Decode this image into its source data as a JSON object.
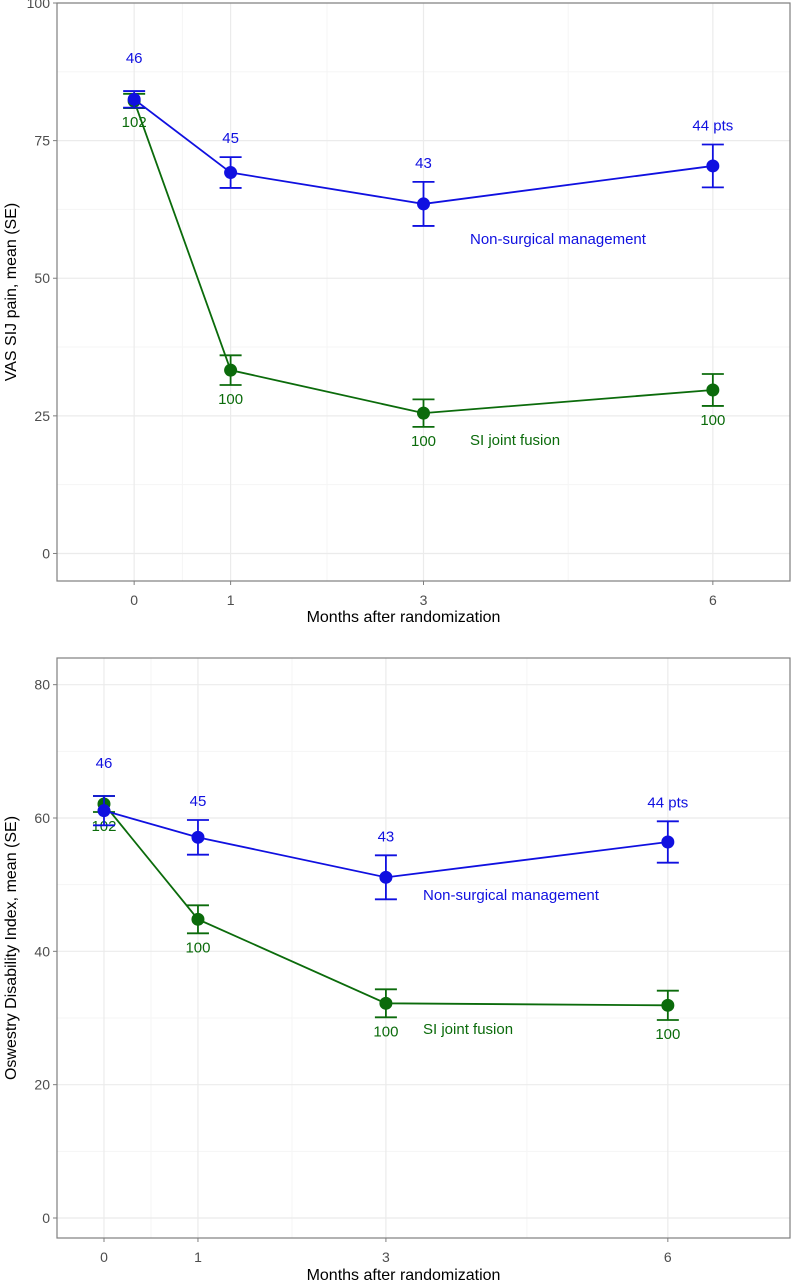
{
  "colors": {
    "nonsurgical": "#1010e0",
    "fusion": "#0b6b0b",
    "grid": "#ebebeb",
    "panel_border": "#7f7f7f"
  },
  "chart_data": [
    {
      "type": "line",
      "ylabel": "VAS SIJ pain, mean (SE)",
      "xlabel": "Months after randomization",
      "x": [
        0,
        1,
        3,
        6
      ],
      "xlim": [
        -0.8,
        6.8
      ],
      "ylim": [
        -5,
        100
      ],
      "yticks": [
        0,
        25,
        50,
        75,
        100
      ],
      "xticks": [
        0,
        1,
        3,
        6
      ],
      "grid": true,
      "series": [
        {
          "name": "Non-surgical management",
          "key": "nonsurgical",
          "values": [
            82.5,
            69.2,
            63.5,
            70.4
          ],
          "se": [
            1.5,
            2.8,
            4.0,
            3.9
          ],
          "n_labels": [
            "46",
            "45",
            "43",
            "44 pts"
          ],
          "n_position": "above"
        },
        {
          "name": "SI joint fusion",
          "key": "fusion",
          "values": [
            82.2,
            33.3,
            25.5,
            29.7
          ],
          "se": [
            1.3,
            2.7,
            2.5,
            2.9
          ],
          "n_labels": [
            "102",
            "100",
            "100",
            "100"
          ],
          "n_position": "below"
        }
      ]
    },
    {
      "type": "line",
      "ylabel": "Oswestry Disability Index, mean (SE)",
      "xlabel": "Months after randomization",
      "x": [
        0,
        1,
        3,
        6
      ],
      "xlim": [
        -0.5,
        7.3
      ],
      "ylim": [
        -3,
        84
      ],
      "yticks": [
        0,
        20,
        40,
        60,
        80
      ],
      "xticks": [
        0,
        1,
        3,
        6
      ],
      "grid": true,
      "series": [
        {
          "name": "Non-surgical management",
          "key": "nonsurgical",
          "values": [
            61.1,
            57.1,
            51.1,
            56.4
          ],
          "se": [
            2.2,
            2.6,
            3.3,
            3.1
          ],
          "n_labels": [
            "46",
            "45",
            "43",
            "44 pts"
          ],
          "n_position": "above"
        },
        {
          "name": "SI joint fusion",
          "key": "fusion",
          "values": [
            62.1,
            44.8,
            32.2,
            31.9
          ],
          "se": [
            1.2,
            2.1,
            2.1,
            2.2
          ],
          "n_labels": [
            "102",
            "100",
            "100",
            "100"
          ],
          "n_position": "below"
        }
      ]
    }
  ]
}
